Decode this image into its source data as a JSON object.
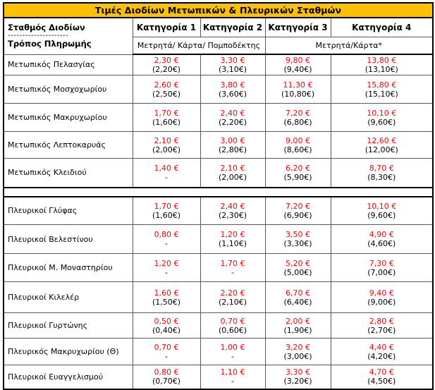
{
  "title": "Τιμές Διοδίων Μετωπικών & Πλευρικών Σταθμών",
  "header": {
    "station_label": "Σταθμός Διοδίων",
    "divider": "---------------------",
    "payment_label": "Τρόπος Πληρωμής",
    "categories": [
      "Κατηγορία 1",
      "Κατηγορία 2",
      "Κατηγορία 3",
      "Κατηγορία 4"
    ],
    "payment_methods": [
      {
        "label": "Μετρητά/ Κάρτα/ Πομποδέκτης",
        "span": 2
      },
      {
        "label": "Μετρητά/Κάρτα*",
        "span": 2
      }
    ]
  },
  "colors": {
    "title_bg": "#FFC000",
    "price_red": "#FF0000",
    "border": "#000000"
  },
  "sections": [
    {
      "name": "frontal-stations",
      "rows": [
        {
          "station": "Μετωπικός Πελασγίας",
          "cells": [
            {
              "price": "2,30 €",
              "sub": "(2,20€)"
            },
            {
              "price": "3,30 €",
              "sub": "(3,10€)"
            },
            {
              "price": "9,80 €",
              "sub": "(9,40€)"
            },
            {
              "price": "13,80 €",
              "sub": "(13,10€)"
            }
          ]
        },
        {
          "station": "Μετωπικός Μοσχοχωρίου",
          "cells": [
            {
              "price": "2,60 €",
              "sub": "(2,50€)"
            },
            {
              "price": "3,80 €",
              "sub": "(3,60€)"
            },
            {
              "price": "11,30 €",
              "sub": "(10,80€)"
            },
            {
              "price": "15,80 €",
              "sub": "(15,10€)"
            }
          ]
        },
        {
          "station": "Μετωπικός Μακρυχωρίου",
          "cells": [
            {
              "price": "1,70 €",
              "sub": "(1,60€)"
            },
            {
              "price": "2,40 €",
              "sub": "(2,20€)"
            },
            {
              "price": "7,20 €",
              "sub": "(6,80€)"
            },
            {
              "price": "10,10 €",
              "sub": "(9,60€)"
            }
          ]
        },
        {
          "station": "Μετωπικός Λεπτοκαρυάς",
          "cells": [
            {
              "price": "2,10 €",
              "sub": "(2,00€)"
            },
            {
              "price": "3,00 €",
              "sub": "(2,80€)"
            },
            {
              "price": "9,00 €",
              "sub": "(8,60€)"
            },
            {
              "price": "12,60 €",
              "sub": "(12,00€)"
            }
          ]
        },
        {
          "station": "Μετωπικός Κλειδιού",
          "cells": [
            {
              "price": "1,40 €",
              "sub": "-"
            },
            {
              "price": "2,10 €",
              "sub": "(2,00€)"
            },
            {
              "price": "6,20 €",
              "sub": "(5,90€)"
            },
            {
              "price": "8,70 €",
              "sub": "(8,30€)"
            }
          ]
        }
      ]
    },
    {
      "name": "lateral-stations",
      "rows": [
        {
          "station": "Πλευρικοί Γλύφας",
          "cells": [
            {
              "price": "1,70 €",
              "sub": "(1,60€)"
            },
            {
              "price": "2,40 €",
              "sub": "(2,30€)"
            },
            {
              "price": "7,20 €",
              "sub": "(6,90€)"
            },
            {
              "price": "10,10 €",
              "sub": "(9,60€)"
            }
          ]
        },
        {
          "station": "Πλευρικοί Βελεστίνου",
          "cells": [
            {
              "price": "0,80 €",
              "sub": "-"
            },
            {
              "price": "1,20 €",
              "sub": "(1,10€)"
            },
            {
              "price": "3,50 €",
              "sub": "(3,30€)"
            },
            {
              "price": "4,90 €",
              "sub": "(4,60€)"
            }
          ]
        },
        {
          "station": "Πλευρικοί Μ. Μοναστηρίου",
          "cells": [
            {
              "price": "1,20 €",
              "sub": "-"
            },
            {
              "price": "1,70 €",
              "sub": "-"
            },
            {
              "price": "5,20 €",
              "sub": "(5,00€)"
            },
            {
              "price": "7,30 €",
              "sub": "(7,00€)"
            }
          ]
        },
        {
          "station": "Πλευρικοί Κιλελέρ",
          "cells": [
            {
              "price": "1,60 €",
              "sub": "(1,50€)"
            },
            {
              "price": "2,20 €",
              "sub": "(2,10€)"
            },
            {
              "price": "6,70 €",
              "sub": "(6,40€)"
            },
            {
              "price": "9,40 €",
              "sub": "(9,00€)"
            }
          ]
        },
        {
          "station": "Πλευρικοί Γυρτώνης",
          "cells": [
            {
              "price": "0,50 €",
              "sub": "(0,40€)"
            },
            {
              "price": "0,70 €",
              "sub": "(0,60€)"
            },
            {
              "price": "2,00 €",
              "sub": "(1,90€)"
            },
            {
              "price": "2,80 €",
              "sub": "(2,70€)"
            }
          ]
        },
        {
          "station": "Πλευρικός Μακρυχωρίου (Θ)",
          "cells": [
            {
              "price": "0,70 €",
              "sub": "-"
            },
            {
              "price": "1,00 €",
              "sub": "-"
            },
            {
              "price": "3,20 €",
              "sub": "(3,00€)"
            },
            {
              "price": "4,40 €",
              "sub": "(4,20€)"
            }
          ]
        },
        {
          "station": "Πλευρικοί Ευαγγελισμού",
          "cells": [
            {
              "price": "0,80 €",
              "sub": "(0,70€)"
            },
            {
              "price": "1,10 €",
              "sub": "-"
            },
            {
              "price": "3,30 €",
              "sub": "(3,20€)"
            },
            {
              "price": "4,70 €",
              "sub": "(4,50€)"
            }
          ]
        }
      ]
    }
  ]
}
